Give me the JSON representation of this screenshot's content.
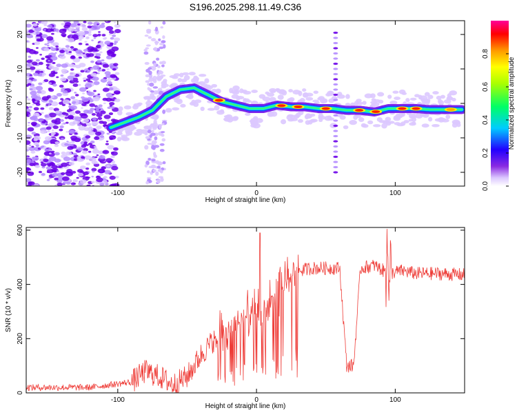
{
  "title": "S196.2025.298.11.49.C36",
  "colors": {
    "snr_line": "#ee3b36",
    "axis": "#000000",
    "background": "#ffffff",
    "colormap": [
      "#ffffff",
      "#dcc8ff",
      "#8a2be2",
      "#5a00d8",
      "#0033ff",
      "#00ccff",
      "#00ff66",
      "#aaff00",
      "#ffff00",
      "#ff9900",
      "#ff0000",
      "#ff0099"
    ]
  },
  "chart_data": [
    {
      "type": "heatmap",
      "name": "spectrogram",
      "xlabel": "Height of straight line (km)",
      "ylabel": "Frequency (Hz)",
      "xlim": [
        -166,
        150
      ],
      "ylim": [
        -24,
        24
      ],
      "xticks": [
        -100,
        0,
        100
      ],
      "yticks": [
        -20,
        -10,
        0,
        10,
        20
      ],
      "colorbar_label": "Normalized spectral amplitude",
      "colorbar_range": [
        0.0,
        1.0
      ],
      "colorbar_ticks": [
        0.0,
        0.2,
        0.4,
        0.6,
        0.8
      ],
      "ridge_frequency": {
        "x": [
          -105,
          -95,
          -85,
          -75,
          -65,
          -55,
          -45,
          -35,
          -25,
          -15,
          -5,
          5,
          15,
          25,
          35,
          45,
          55,
          65,
          75,
          85,
          95,
          105,
          115,
          125,
          135,
          148
        ],
        "y": [
          -7,
          -5.5,
          -4,
          -2,
          2,
          4,
          4.5,
          2.5,
          0.5,
          -0.5,
          -1.5,
          -1.5,
          -0.5,
          -1,
          -1,
          -1.5,
          -1.5,
          -2,
          -2,
          -2.5,
          -1.5,
          -1.5,
          -1.5,
          -1.8,
          -1.8,
          -1.8
        ]
      }
    },
    {
      "type": "line",
      "name": "snr",
      "xlabel": "Height of straight line (km)",
      "ylabel": "SNR (10 * v/v)",
      "xlim": [
        -166,
        150
      ],
      "ylim": [
        0,
        610
      ],
      "xticks": [
        -100,
        0,
        100
      ],
      "yticks": [
        0,
        200,
        400,
        600
      ],
      "trend": {
        "x": [
          -166,
          -120,
          -90,
          -80,
          -70,
          -60,
          -50,
          -40,
          -30,
          -20,
          -10,
          0,
          10,
          20,
          30,
          40,
          50,
          60,
          65,
          70,
          75,
          85,
          95,
          105,
          115,
          130,
          150
        ],
        "y": [
          20,
          20,
          40,
          80,
          60,
          30,
          60,
          140,
          200,
          230,
          270,
          290,
          320,
          400,
          450,
          460,
          460,
          460,
          100,
          100,
          460,
          470,
          440,
          450,
          440,
          440,
          435
        ]
      }
    }
  ]
}
